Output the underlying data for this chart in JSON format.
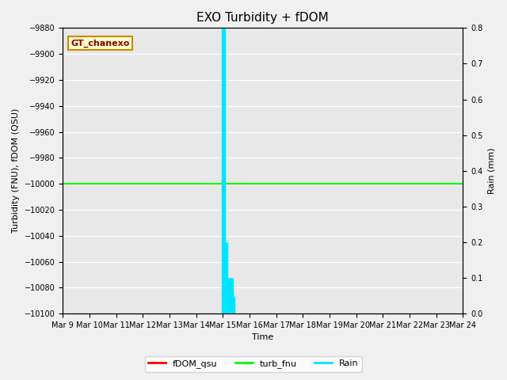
{
  "title": "EXO Turbidity + fDOM",
  "xlabel": "Time",
  "ylabel_left": "Turbidity (FNU), fDOM (QSU)",
  "ylabel_right": "Rain (mm)",
  "ylim_left": [
    -10100,
    -9880
  ],
  "ylim_right": [
    0.0,
    0.8
  ],
  "yticks_left": [
    -10100,
    -10080,
    -10060,
    -10040,
    -10020,
    -10000,
    -9980,
    -9960,
    -9940,
    -9920,
    -9900,
    -9880
  ],
  "yticks_right": [
    0.0,
    0.1,
    0.2,
    0.3,
    0.4,
    0.5,
    0.6,
    0.7,
    0.8
  ],
  "x_ticklabels": [
    "Mar 9",
    "Mar 10",
    "Mar 11",
    "Mar 12",
    "Mar 13",
    "Mar 14",
    "Mar 15",
    "Mar 16",
    "Mar 17",
    "Mar 18",
    "Mar 19",
    "Mar 20",
    "Mar 21",
    "Mar 22",
    "Mar 23",
    "Mar 24"
  ],
  "fdom_value": -10000,
  "turb_value": -10000,
  "rain_spikes": [
    {
      "day": 6.0,
      "value": 0.8
    },
    {
      "day": 6.05,
      "value": 0.8
    },
    {
      "day": 6.15,
      "value": 0.2
    },
    {
      "day": 6.2,
      "value": 0.1
    },
    {
      "day": 6.25,
      "value": 0.1
    },
    {
      "day": 6.3,
      "value": 0.1
    },
    {
      "day": 6.35,
      "value": 0.1
    },
    {
      "day": 6.4,
      "value": 0.05
    }
  ],
  "fdom_color": "#ff0000",
  "turb_color": "#00ff00",
  "rain_color": "#00e5ff",
  "background_color": "#f0f0f0",
  "plot_bg_color": "#e8e8e8",
  "grid_color": "#ffffff",
  "annotation_box_text": "GT_chanexo",
  "annotation_box_facecolor": "#ffffcc",
  "annotation_box_edgecolor": "#cc8800",
  "legend_labels": [
    "fDOM_qsu",
    "turb_fnu",
    "Rain"
  ],
  "legend_colors": [
    "#ff0000",
    "#00ff00",
    "#00e5ff"
  ],
  "title_fontsize": 11,
  "label_fontsize": 8,
  "tick_fontsize": 7,
  "legend_fontsize": 8,
  "num_days": 15
}
